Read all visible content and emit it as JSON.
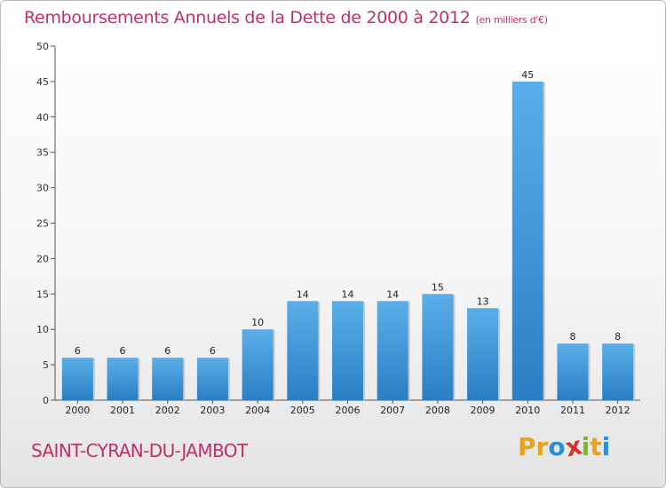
{
  "header": {
    "title": "Remboursements Annuels de la Dette de 2000 à 2012",
    "subtitle": "(en milliers d'€)"
  },
  "footer": {
    "commune": "SAINT-CYRAN-DU-JAMBOT",
    "brand": [
      "P",
      "r",
      "o",
      "x",
      "i",
      "t",
      "i"
    ],
    "brand_colors": [
      "#e8a21c",
      "#e8a21c",
      "#2a8fd6",
      "#d8302a",
      "#7ab829",
      "#e8a21c",
      "#2a8fd6"
    ]
  },
  "colors": {
    "bar_top": "#5aaee9",
    "bar_bottom": "#2a7fc4",
    "text_accent": "#c0306a"
  },
  "chart_data": {
    "type": "bar",
    "title": "Remboursements Annuels de la Dette de 2000 à 2012",
    "subtitle": "(en milliers d'€)",
    "categories": [
      "2000",
      "2001",
      "2002",
      "2003",
      "2004",
      "2005",
      "2006",
      "2007",
      "2008",
      "2009",
      "2010",
      "2011",
      "2012"
    ],
    "values": [
      6,
      6,
      6,
      6,
      10,
      14,
      14,
      14,
      15,
      13,
      45,
      8,
      8
    ],
    "ylim": [
      0,
      50
    ],
    "yticks": [
      0,
      5,
      10,
      15,
      20,
      25,
      30,
      35,
      40,
      45,
      50
    ],
    "grid": false,
    "legend": "none"
  }
}
